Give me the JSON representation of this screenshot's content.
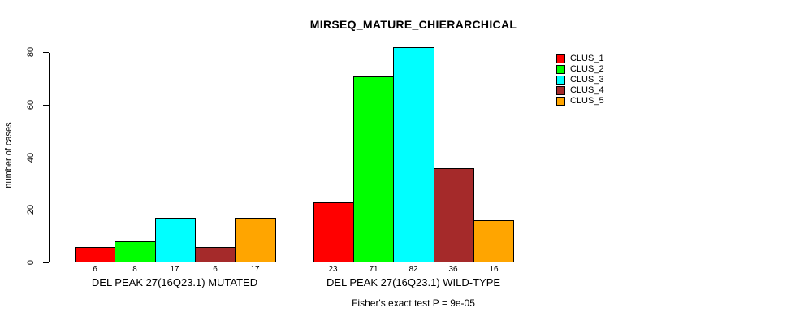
{
  "chart_data": {
    "type": "bar",
    "title": "MIRSEQ_MATURE_CHIERARCHICAL",
    "xlabel": "",
    "ylabel": "number of cases",
    "ylim": [
      0,
      82
    ],
    "y_ticks": [
      0,
      20,
      40,
      60,
      80
    ],
    "grid": false,
    "legend_position": "right",
    "categories": [
      "DEL PEAK 27(16Q23.1) MUTATED",
      "DEL PEAK 27(16Q23.1) WILD-TYPE"
    ],
    "series": [
      {
        "name": "CLUS_1",
        "color": "#FF0000",
        "values": [
          6,
          23
        ]
      },
      {
        "name": "CLUS_2",
        "color": "#00FF00",
        "values": [
          8,
          71
        ]
      },
      {
        "name": "CLUS_3",
        "color": "#00FFFF",
        "values": [
          17,
          82
        ]
      },
      {
        "name": "CLUS_4",
        "color": "#A52A2A",
        "values": [
          6,
          36
        ]
      },
      {
        "name": "CLUS_5",
        "color": "#FFA500",
        "values": [
          17,
          16
        ]
      }
    ],
    "bar_value_labels_shown": true,
    "annotation": "Fisher's exact test P = 9e-05"
  },
  "colors": {
    "background": "#FFFFFF",
    "axis": "#000000",
    "bar_border": "#000000",
    "text": "#000000"
  }
}
